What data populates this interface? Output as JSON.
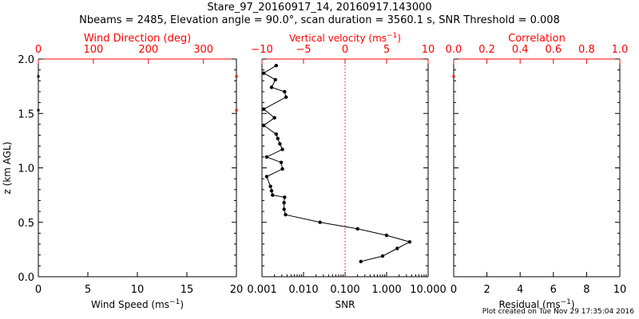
{
  "figure": {
    "title_line1": "Stare_97_20160917_14, 20160917.143000",
    "title_line2": "Nbeams = 2485, Elevation angle = 90.0°, scan duration = 3560.1 s, SNR Threshold = 0.008",
    "credit": "Plot created on Tue Nov 29 17:35:04 2016",
    "colors": {
      "axis": "#000000",
      "secondary_axis": "#ff0000",
      "data": "#000000",
      "zero_line": "#ff0000"
    }
  },
  "chart_data": [
    {
      "type": "scatter",
      "ylabel": "z (km AGL)",
      "ylim": [
        0,
        2
      ],
      "yticks": [
        "0.0",
        "0.5",
        "1.0",
        "1.5",
        "2.0"
      ],
      "xlabel_bottom": "Wind Speed (ms",
      "xlim_bottom": [
        0,
        20
      ],
      "xticks_bottom": [
        "0",
        "5",
        "10",
        "15",
        "20"
      ],
      "xlabel_top": "Wind Direction (deg)",
      "xlim_top": [
        0,
        360
      ],
      "xticks_top": [
        "0",
        "100",
        "200",
        "300"
      ],
      "points": [
        {
          "x": 0,
          "y": 1.84,
          "color": "black"
        },
        {
          "x": 0,
          "y": 1.53,
          "color": "black"
        },
        {
          "x": 20,
          "y": 1.84,
          "color": "red"
        },
        {
          "x": 20,
          "y": 1.53,
          "color": "red"
        }
      ]
    },
    {
      "type": "line",
      "xscale_bottom": "log",
      "xlabel_bottom": "SNR",
      "xlim_bottom": [
        0.001,
        10
      ],
      "xticks_bottom": [
        "0.001",
        "0.010",
        "0.100",
        "1.000",
        "10.000"
      ],
      "xlabel_top": "Vertical velocity (ms",
      "xlim_top": [
        -10,
        10
      ],
      "xticks_top": [
        "−10",
        "−5",
        "0",
        "5",
        "10"
      ],
      "zero_line": "dotted red at 0 m/s",
      "series": [
        {
          "x": [
            0.24,
            0.8,
            1.8,
            3.6,
            1.0,
            0.2,
            0.025,
            0.0037,
            0.0034,
            0.0034,
            0.0035,
            0.0018,
            0.0017,
            0.0016,
            0.0013,
            0.0031,
            0.0029,
            0.0013,
            0.0031,
            0.0027,
            0.0024,
            0.0022,
            0.0011,
            0.002,
            0.0011,
            0.0038,
            0.0035,
            0.0017,
            0.0021,
            0.0011,
            0.0022
          ],
          "y": [
            0.14,
            0.19,
            0.26,
            0.32,
            0.38,
            0.44,
            0.5,
            0.57,
            0.62,
            0.68,
            0.73,
            0.75,
            0.79,
            0.83,
            0.92,
            0.99,
            1.05,
            1.1,
            1.17,
            1.22,
            1.27,
            1.31,
            1.39,
            1.46,
            1.54,
            1.65,
            1.7,
            1.74,
            1.81,
            1.87,
            1.94
          ]
        }
      ]
    },
    {
      "type": "scatter",
      "xlabel_bottom": "Residual (ms",
      "xlim_bottom": [
        0,
        10
      ],
      "xticks_bottom": [
        "0",
        "2",
        "4",
        "6",
        "8",
        "10"
      ],
      "xlabel_top": "Correlation",
      "xlim_top": [
        0,
        1
      ],
      "xticks_top": [
        "0.0",
        "0.2",
        "0.4",
        "0.6",
        "0.8",
        "1.0"
      ],
      "points": [
        {
          "x": 0,
          "y": 1.84,
          "color": "red"
        }
      ]
    }
  ]
}
